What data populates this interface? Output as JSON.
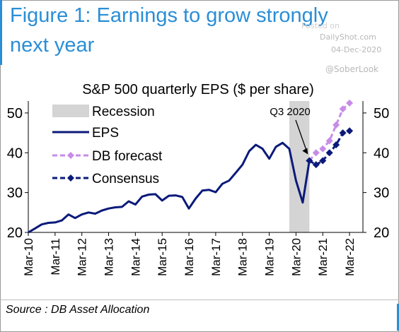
{
  "header": {
    "title_line1": "Figure 1: Earnings to grow strongly",
    "title_line2": "next year"
  },
  "watermark": {
    "posted": "Posted on",
    "site": "DailyShot.com",
    "date": "04-Dec-2020",
    "handle": "@SoberLook"
  },
  "source": "Source : DB Asset Allocation",
  "colors": {
    "eps": "#0b1a7a",
    "db_forecast": "#c78ce8",
    "consensus": "#0b1a7a",
    "recession": "#d4d4d4",
    "accent": "#2a8ed6"
  },
  "chart_data": {
    "type": "line",
    "title": "S&P 500 quarterly EPS ($ per share)",
    "x_ticks": [
      "Mar-10",
      "Mar-11",
      "Mar-12",
      "Mar-13",
      "Mar-14",
      "Mar-15",
      "Mar-16",
      "Mar-17",
      "Mar-18",
      "Mar-19",
      "Mar-20",
      "Mar-21",
      "Mar-22"
    ],
    "y_ticks": [
      20,
      30,
      40,
      50
    ],
    "ylim": [
      20,
      53
    ],
    "xlim": [
      "Mar-10",
      "Sep-22"
    ],
    "grid": false,
    "legend_position": "top-left",
    "recession": {
      "label": "Recession",
      "start": "Dec-19",
      "end": "Sep-20"
    },
    "annotation": {
      "text": "Q3 2020",
      "x": "Sep-20",
      "y": 38.0
    },
    "series": [
      {
        "name": "EPS",
        "x": [
          "Mar-10",
          "Jun-10",
          "Sep-10",
          "Dec-10",
          "Mar-11",
          "Jun-11",
          "Sep-11",
          "Dec-11",
          "Mar-12",
          "Jun-12",
          "Sep-12",
          "Dec-12",
          "Mar-13",
          "Jun-13",
          "Sep-13",
          "Dec-13",
          "Mar-14",
          "Jun-14",
          "Sep-14",
          "Dec-14",
          "Mar-15",
          "Jun-15",
          "Sep-15",
          "Dec-15",
          "Mar-16",
          "Jun-16",
          "Sep-16",
          "Dec-16",
          "Mar-17",
          "Jun-17",
          "Sep-17",
          "Dec-17",
          "Mar-18",
          "Jun-18",
          "Sep-18",
          "Dec-18",
          "Mar-19",
          "Jun-19",
          "Sep-19",
          "Dec-19",
          "Mar-20",
          "Jun-20",
          "Sep-20"
        ],
        "values": [
          20.0,
          21.0,
          22.0,
          22.4,
          22.5,
          23.0,
          24.5,
          23.6,
          24.5,
          25.0,
          24.7,
          25.5,
          26.0,
          26.3,
          26.4,
          27.8,
          27.0,
          29.0,
          29.5,
          29.6,
          28.0,
          29.2,
          29.3,
          28.9,
          26.0,
          28.5,
          30.5,
          30.7,
          30.1,
          32.2,
          33.0,
          35.0,
          37.0,
          40.4,
          42.0,
          41.0,
          38.5,
          41.5,
          42.5,
          41.0,
          33.0,
          27.5,
          38.0
        ]
      },
      {
        "name": "DB forecast",
        "x": [
          "Sep-20",
          "Dec-20",
          "Mar-21",
          "Jun-21",
          "Sep-21",
          "Dec-21",
          "Mar-22"
        ],
        "values": [
          38.0,
          40.0,
          41.0,
          43.0,
          47.0,
          51.0,
          52.5
        ]
      },
      {
        "name": "Consensus",
        "x": [
          "Sep-20",
          "Dec-20",
          "Mar-21",
          "Jun-21",
          "Sep-21",
          "Dec-21",
          "Mar-22"
        ],
        "values": [
          38.0,
          37.0,
          38.0,
          40.0,
          42.0,
          45.0,
          45.5
        ]
      }
    ]
  }
}
